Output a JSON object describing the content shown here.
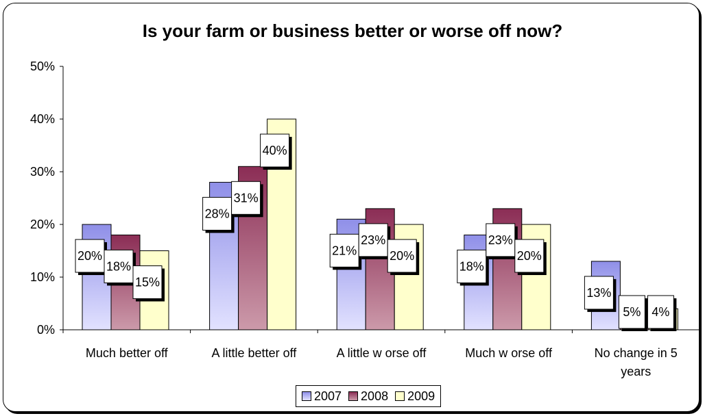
{
  "chart_data": {
    "type": "bar",
    "title": "Is your farm or business better or worse off now?",
    "categories": [
      "Much better off",
      "A little better off",
      "A little w orse off",
      "Much w orse off",
      "No change in 5 years"
    ],
    "category_lines": [
      [
        "Much better off"
      ],
      [
        "A little better off"
      ],
      [
        "A little w orse off"
      ],
      [
        "Much w orse off"
      ],
      [
        "No change in 5",
        "years"
      ]
    ],
    "series": [
      {
        "name": "2007",
        "values": [
          20,
          28,
          21,
          18,
          13
        ],
        "labels": [
          "20%",
          "28%",
          "21%",
          "18%",
          "13%"
        ],
        "color_top": "#8f8fe8",
        "color_bottom": "#e2e2ff"
      },
      {
        "name": "2008",
        "values": [
          18,
          31,
          23,
          23,
          5
        ],
        "labels": [
          "18%",
          "31%",
          "23%",
          "23%",
          "5%"
        ],
        "color_top": "#8b2d55",
        "color_bottom": "#cc9aaa"
      },
      {
        "name": "2009",
        "values": [
          15,
          40,
          20,
          20,
          4
        ],
        "labels": [
          "15%",
          "40%",
          "20%",
          "20%",
          "4%"
        ],
        "color_top": "#ffffcc",
        "color_bottom": "#ffffcc"
      }
    ],
    "ylim": [
      0,
      50
    ],
    "yticks": [
      "0%",
      "10%",
      "20%",
      "30%",
      "40%",
      "50%"
    ],
    "xlabel": "",
    "ylabel": "",
    "legend": "bottom"
  }
}
